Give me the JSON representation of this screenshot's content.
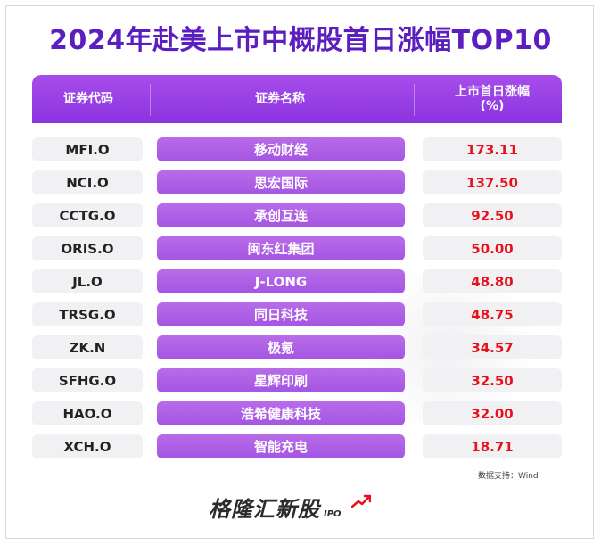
{
  "title": "2024年赴美上市中概股首日涨幅TOP10",
  "header": {
    "code": "证券代码",
    "name": "证券名称",
    "rise_line1": "上市首日涨幅",
    "rise_line2": "(%)"
  },
  "source": "数据支持：Wind",
  "logo": {
    "text": "格隆汇新股",
    "suffix": "IPO"
  },
  "colors": {
    "title": "#5b1fbf",
    "header": "#8b34df",
    "name_cell": "#a455e3",
    "value": "#e8101a"
  },
  "chart_data": {
    "type": "table",
    "title": "2024年赴美上市中概股首日涨幅TOP10",
    "columns": [
      "证券代码",
      "证券名称",
      "上市首日涨幅(%)"
    ],
    "rows": [
      {
        "code": "MFI.O",
        "name": "移动财经",
        "rise": "173.11"
      },
      {
        "code": "NCI.O",
        "name": "思宏国际",
        "rise": "137.50"
      },
      {
        "code": "CCTG.O",
        "name": "承创互连",
        "rise": "92.50"
      },
      {
        "code": "ORIS.O",
        "name": "闽东红集团",
        "rise": "50.00"
      },
      {
        "code": "JL.O",
        "name": "J-LONG",
        "rise": "48.80"
      },
      {
        "code": "TRSG.O",
        "name": "同日科技",
        "rise": "48.75"
      },
      {
        "code": "ZK.N",
        "name": "极氪",
        "rise": "34.57"
      },
      {
        "code": "SFHG.O",
        "name": "星辉印刷",
        "rise": "32.50"
      },
      {
        "code": "HAO.O",
        "name": "浩希健康科技",
        "rise": "32.00"
      },
      {
        "code": "XCH.O",
        "name": "智能充电",
        "rise": "18.71"
      }
    ]
  }
}
